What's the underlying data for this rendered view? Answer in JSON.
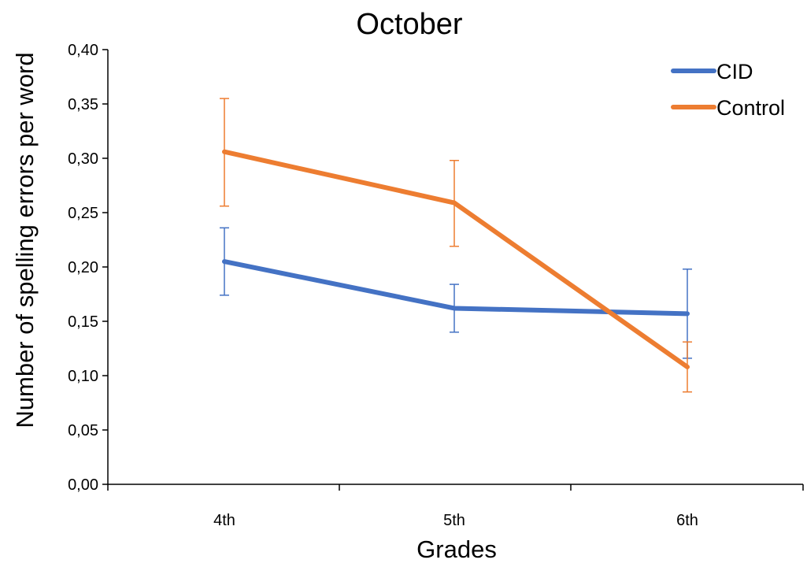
{
  "chart_data": {
    "type": "line",
    "title": "October",
    "xlabel": "Grades",
    "ylabel": "Number of spelling errors per word",
    "categories": [
      "4th",
      "5th",
      "6th"
    ],
    "ylim": [
      0,
      0.4
    ],
    "yticks": [
      "0,00",
      "0,05",
      "0,10",
      "0,15",
      "0,20",
      "0,25",
      "0,30",
      "0,35",
      "0,40"
    ],
    "grid": false,
    "legend_position": "top-right",
    "series": [
      {
        "name": "CID",
        "color": "#4472C4",
        "values": [
          0.205,
          0.162,
          0.157
        ],
        "error_low": [
          0.174,
          0.14,
          0.116
        ],
        "error_high": [
          0.236,
          0.184,
          0.198
        ]
      },
      {
        "name": "Control",
        "color": "#ED7D31",
        "values": [
          0.306,
          0.259,
          0.108
        ],
        "error_low": [
          0.256,
          0.219,
          0.085
        ],
        "error_high": [
          0.355,
          0.298,
          0.131
        ]
      }
    ]
  }
}
